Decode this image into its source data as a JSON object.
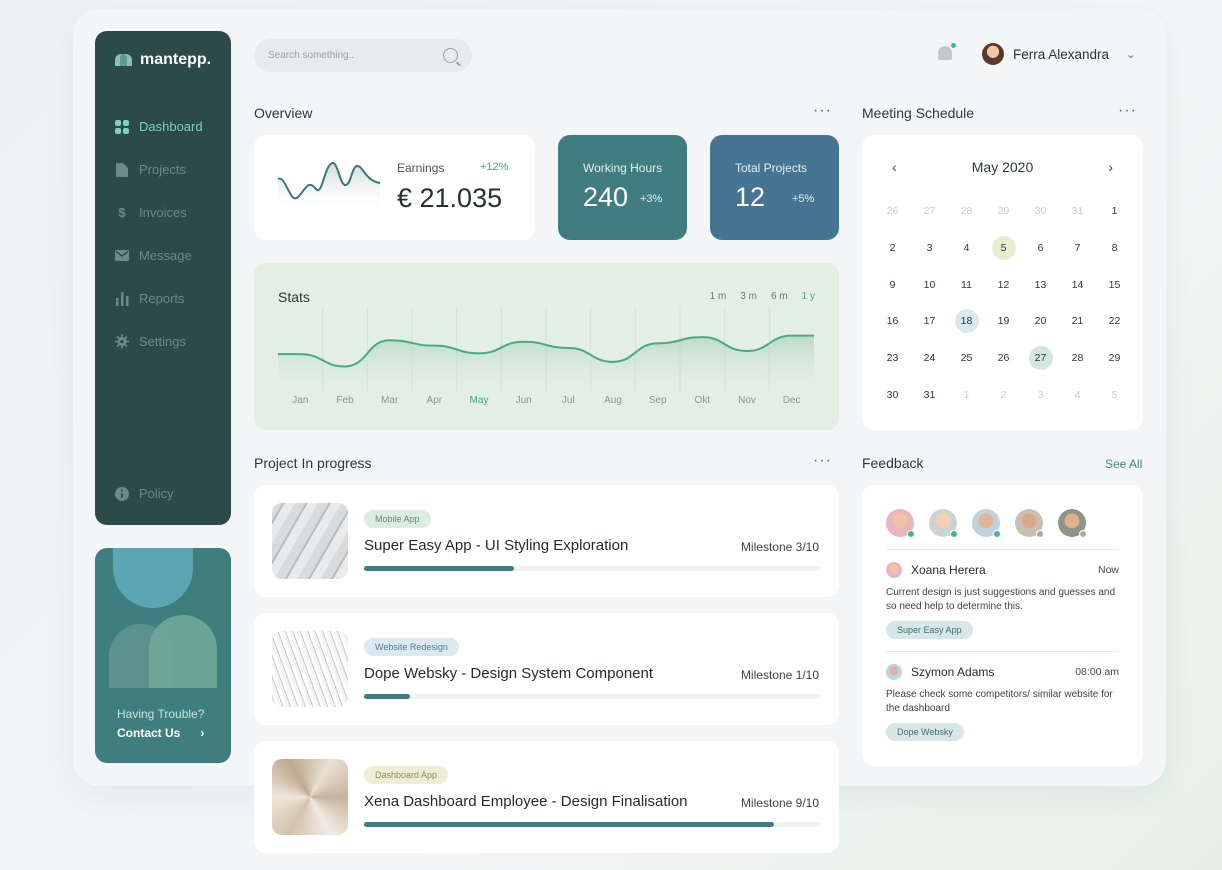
{
  "brand": {
    "name": "mantepp."
  },
  "sidebar": {
    "items": [
      {
        "label": "Dashboard",
        "icon": "grid-icon",
        "active": true
      },
      {
        "label": "Projects",
        "icon": "file-icon",
        "active": false
      },
      {
        "label": "Invoices",
        "icon": "dollar-icon",
        "active": false
      },
      {
        "label": "Message",
        "icon": "mail-icon",
        "active": false
      },
      {
        "label": "Reports",
        "icon": "bar-chart-icon",
        "active": false
      },
      {
        "label": "Settings",
        "icon": "gear-icon",
        "active": false
      }
    ],
    "policy": "Policy",
    "help": {
      "text": "Having Trouble?",
      "link": "Contact Us"
    }
  },
  "header": {
    "search_placeholder": "Search something..",
    "user_name": "Ferra Alexandra"
  },
  "overview": {
    "title": "Overview",
    "earnings": {
      "label": "Earnings",
      "change": "+12%",
      "value": "€ 21.035"
    },
    "working_hours": {
      "label": "Working Hours",
      "value": "240",
      "change": "+3%"
    },
    "total_projects": {
      "label": "Total Projects",
      "value": "12",
      "change": "+5%"
    }
  },
  "stats": {
    "title": "Stats",
    "ranges": [
      "1 m",
      "3 m",
      "6 m",
      "1 y"
    ],
    "active_range": "1 y",
    "active_month": "May"
  },
  "chart_data": {
    "type": "area",
    "categories": [
      "Jan",
      "Feb",
      "Mar",
      "Apr",
      "May",
      "Jun",
      "Jul",
      "Aug",
      "Sep",
      "Okt",
      "Nov",
      "Dec"
    ],
    "values": [
      44,
      28,
      62,
      55,
      45,
      60,
      52,
      34,
      58,
      66,
      48,
      68
    ],
    "ylim": [
      0,
      100
    ],
    "grid": true
  },
  "projects": {
    "title": "Project In progress",
    "items": [
      {
        "tag": "Mobile App",
        "name": "Super Easy App - UI Styling Exploration",
        "milestone_label": "Milestone",
        "milestone": "3/10",
        "progress": 0.33
      },
      {
        "tag": "Website Redesign",
        "name": "Dope Websky - Design System Component",
        "milestone_label": "Milestone",
        "milestone": "1/10",
        "progress": 0.1
      },
      {
        "tag": "Dashboard App",
        "name": "Xena Dashboard Employee - Design Finalisation",
        "milestone_label": "Milestone",
        "milestone": "9/10",
        "progress": 0.9
      }
    ]
  },
  "meeting": {
    "title": "Meeting Schedule",
    "month": "May 2020",
    "days": [
      {
        "d": "26",
        "m": true
      },
      {
        "d": "27",
        "m": true
      },
      {
        "d": "28",
        "m": true
      },
      {
        "d": "29",
        "m": true
      },
      {
        "d": "30",
        "m": true
      },
      {
        "d": "31",
        "m": true
      },
      {
        "d": "1"
      },
      {
        "d": "2"
      },
      {
        "d": "3"
      },
      {
        "d": "4"
      },
      {
        "d": "5",
        "hl": "yellow"
      },
      {
        "d": "6"
      },
      {
        "d": "7"
      },
      {
        "d": "8"
      },
      {
        "d": "9"
      },
      {
        "d": "10"
      },
      {
        "d": "11"
      },
      {
        "d": "12"
      },
      {
        "d": "13"
      },
      {
        "d": "14"
      },
      {
        "d": "15"
      },
      {
        "d": "16"
      },
      {
        "d": "17"
      },
      {
        "d": "18",
        "hl": "blue"
      },
      {
        "d": "19"
      },
      {
        "d": "20"
      },
      {
        "d": "21"
      },
      {
        "d": "22"
      },
      {
        "d": "23"
      },
      {
        "d": "24"
      },
      {
        "d": "25"
      },
      {
        "d": "26"
      },
      {
        "d": "27",
        "hl": "green"
      },
      {
        "d": "28"
      },
      {
        "d": "29"
      },
      {
        "d": "30"
      },
      {
        "d": "31"
      },
      {
        "d": "1",
        "m": true
      },
      {
        "d": "2",
        "m": true
      },
      {
        "d": "3",
        "m": true
      },
      {
        "d": "4",
        "m": true
      },
      {
        "d": "5",
        "m": true
      }
    ]
  },
  "feedback": {
    "title": "Feedback",
    "see_all": "See All",
    "items": [
      {
        "name": "Xoana Herera",
        "time": "Now",
        "message": "Current design is  just suggestions and guesses and so need help to determine this.",
        "tag": "Super Easy App"
      },
      {
        "name": "Szymon Adams",
        "time": "08:00 am",
        "message": "Please check some competitors/ similar website for the dashboard",
        "tag": "Dope Websky"
      }
    ]
  },
  "colors": {
    "sidebar": "#2c4a47",
    "accent": "#46a88a",
    "working_hours_card": "#3f7d80",
    "total_projects_card": "#467594"
  }
}
